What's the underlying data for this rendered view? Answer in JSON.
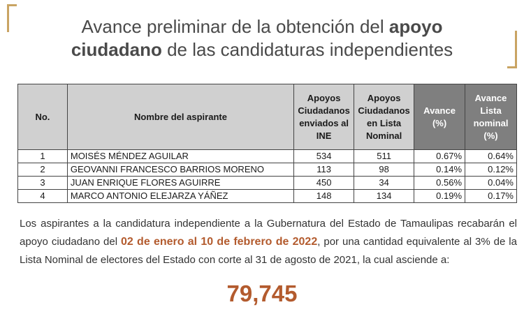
{
  "title": {
    "part1": "Avance preliminar de la obtención del ",
    "bold1": "apoyo",
    "bold2": "ciudadano",
    "part2": " de las candidaturas independientes"
  },
  "table": {
    "headers": {
      "no": "No.",
      "name": "Nombre del aspirante",
      "ine": "Apoyos Ciudadanos enviados al INE",
      "lista": "Apoyos Ciudadanos en Lista Nominal",
      "avance": "Avance (%)",
      "avance_lista": "Avance Lista nominal (%)"
    },
    "rows": [
      {
        "no": "1",
        "name": "MOISÉS MÉNDEZ AGUILAR",
        "ine": "534",
        "lista": "511",
        "avance": "0.67%",
        "avance_lista": "0.64%"
      },
      {
        "no": "2",
        "name": "GEOVANNI FRANCESCO BARRIOS MORENO",
        "ine": "113",
        "lista": "98",
        "avance": "0.14%",
        "avance_lista": "0.12%"
      },
      {
        "no": "3",
        "name": "JUAN ENRIQUE FLORES AGUIRRE",
        "ine": "450",
        "lista": "34",
        "avance": "0.56%",
        "avance_lista": "0.04%"
      },
      {
        "no": "4",
        "name": "MARCO ANTONIO ELEJARZA YÁÑEZ",
        "ine": "148",
        "lista": "134",
        "avance": "0.19%",
        "avance_lista": "0.17%"
      }
    ]
  },
  "paragraph": {
    "before": "Los aspirantes a la candidatura independiente a la Gubernatura del Estado de Tamaulipas recabarán el apoyo ciudadano del ",
    "highlight": "02 de enero al 10 de febrero de 2022",
    "after": ", por una cantidad equivalente al 3% de la Lista Nominal de electores del Estado con corte al 31 de agosto de 2021, la cual asciende a:"
  },
  "total": "79,745",
  "colors": {
    "accent_gold": "#c9a463",
    "highlight": "#b35b2e",
    "header_gray": "#d0d0d0",
    "header_dark": "#7f7f7f"
  }
}
